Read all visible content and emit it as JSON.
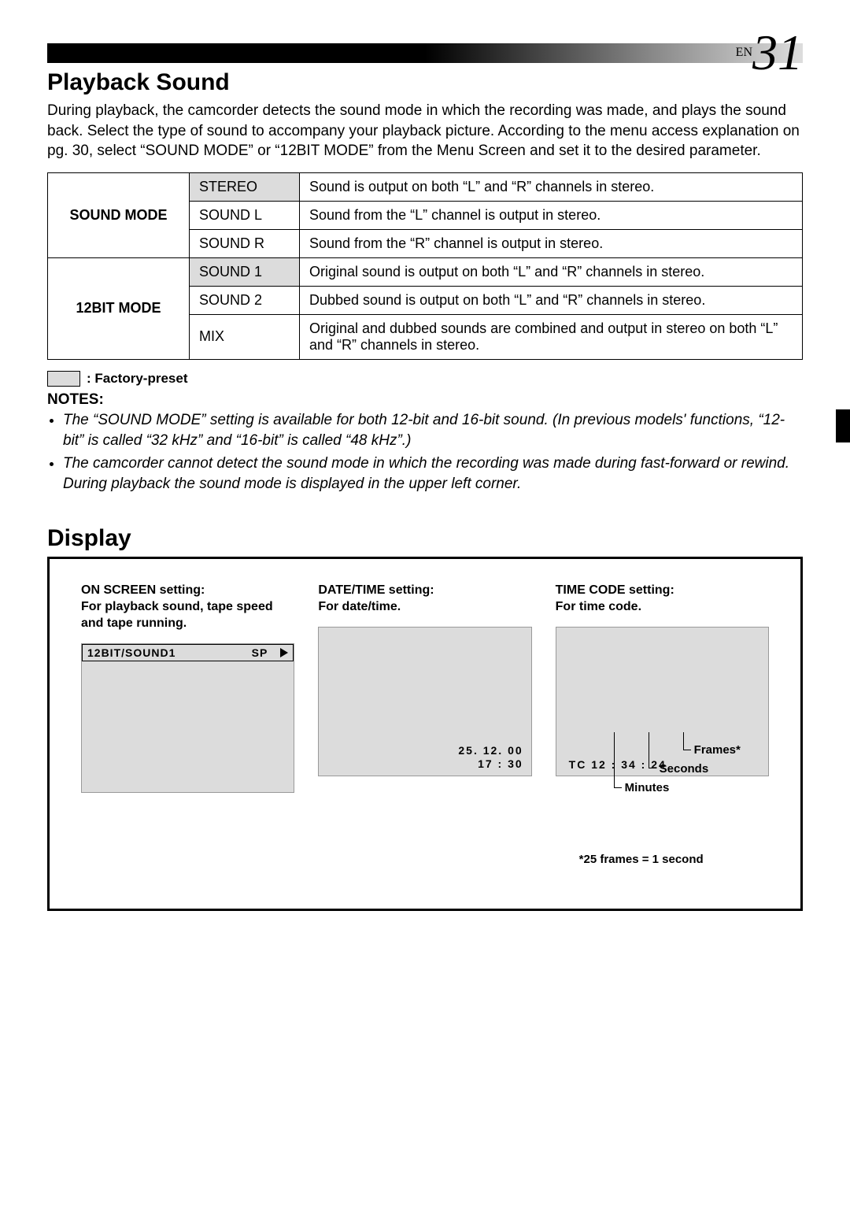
{
  "page_label_prefix": "EN",
  "page_number": "31",
  "section1_title": "Playback Sound",
  "intro_text": "During playback, the camcorder detects the sound mode in which the recording was made, and plays the sound back. Select the type of sound to accompany your playback picture. According to the menu access explanation on pg. 30, select “SOUND MODE” or “12BIT MODE” from the Menu Screen and set it to the desired parameter.",
  "table": {
    "rows": [
      {
        "category": "SOUND MODE",
        "option": "STEREO",
        "preset": true,
        "desc": "Sound is output on both “L” and “R” channels in stereo.",
        "rowspan": 3
      },
      {
        "option": "SOUND L",
        "preset": false,
        "desc": "Sound from the “L” channel is output in stereo."
      },
      {
        "option": "SOUND R",
        "preset": false,
        "desc": "Sound from the “R” channel is output in stereo."
      },
      {
        "category": "12BIT MODE",
        "option": "SOUND 1",
        "preset": true,
        "desc": "Original sound is output on both “L” and “R” channels in stereo.",
        "rowspan": 3
      },
      {
        "option": "SOUND 2",
        "preset": false,
        "desc": "Dubbed sound is output on both “L” and “R” channels in stereo."
      },
      {
        "option": "MIX",
        "preset": false,
        "desc": "Original and dubbed sounds are combined and output in stereo on both “L” and “R” channels in stereo."
      }
    ]
  },
  "legend_text": ": Factory-preset",
  "notes_heading": "NOTES:",
  "notes": [
    "The “SOUND MODE” setting is available for both 12-bit and 16-bit sound. (In previous models' functions, “12-bit” is called “32 kHz” and “16-bit” is called “48 kHz”.)",
    "The camcorder cannot detect the sound mode in which the recording was made during fast-forward or rewind. During playback the sound mode is displayed in the upper left corner."
  ],
  "section2_title": "Display",
  "display": {
    "col1": {
      "heading": "ON SCREEN setting:\nFor playback sound, tape speed and tape running.",
      "top_left": "12BIT/SOUND1",
      "top_sp": "SP"
    },
    "col2": {
      "heading": "DATE/TIME setting:\nFor date/time.",
      "date_line1": "25. 12. 00",
      "date_line2": "17 : 30"
    },
    "col3": {
      "heading": "TIME CODE setting:\nFor time code.",
      "tc_text": "TC  12 : 34 : 24",
      "label_frames": "Frames*",
      "label_seconds": "Seconds",
      "label_minutes": "Minutes",
      "footnote": "*25 frames = 1 second"
    }
  },
  "colors": {
    "preset_bg": "#dcdcdc",
    "text": "#000000"
  }
}
